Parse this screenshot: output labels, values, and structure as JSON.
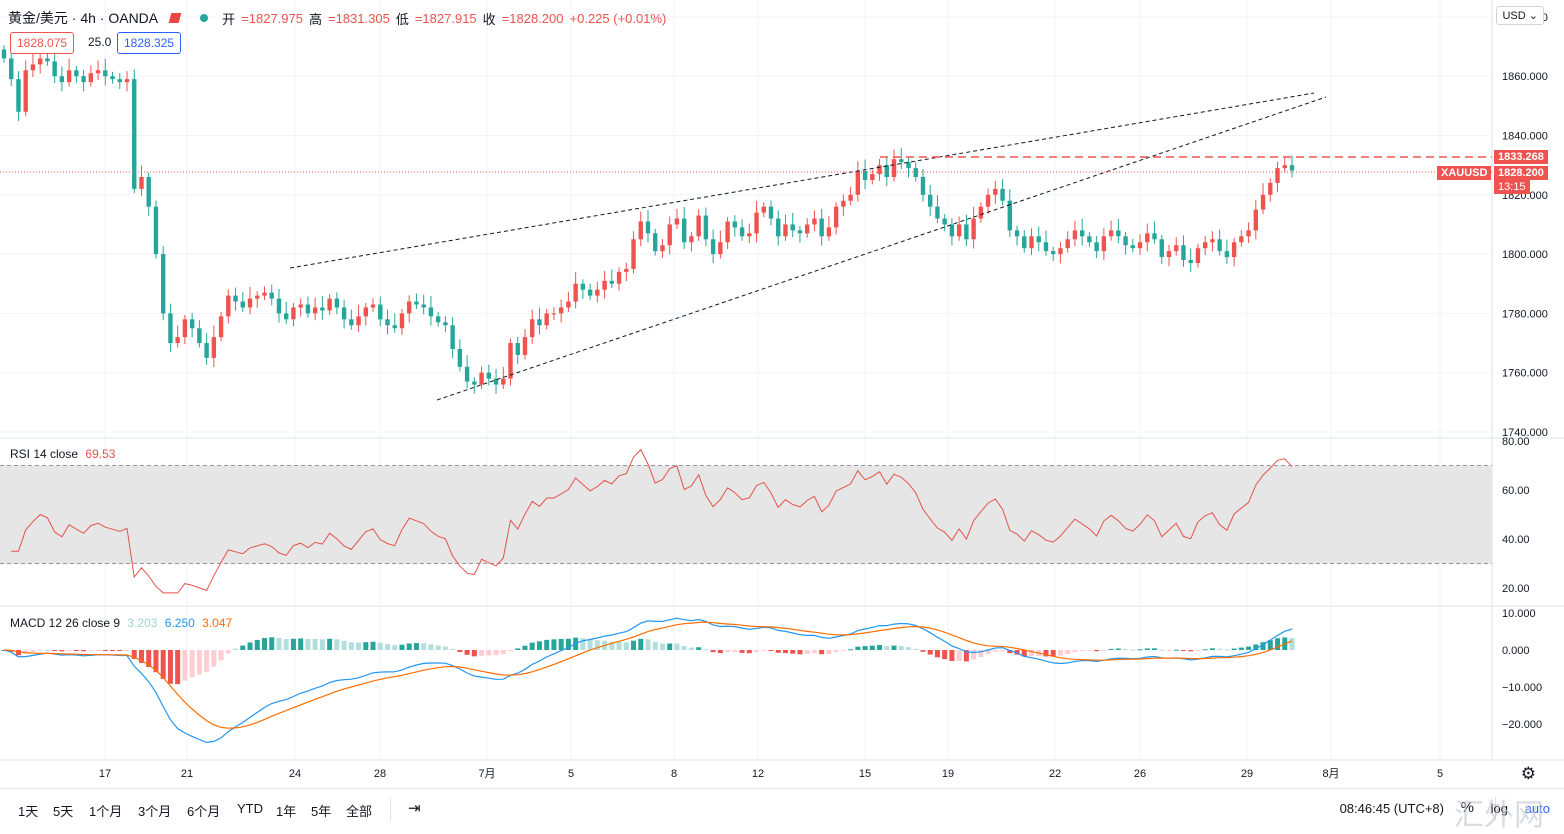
{
  "header": {
    "symbol": "黄金/美元 · 4h · OANDA",
    "open_label": "开",
    "open": "=1827.975",
    "high_label": "高",
    "high": "=1831.305",
    "low_label": "低",
    "low": "=1827.915",
    "close_label": "收",
    "close": "=1828.200",
    "change": "+0.225 (+0.01%)",
    "bid": "1828.075",
    "spread": "25.0",
    "ask": "1828.325",
    "currency": "USD"
  },
  "price_axis": {
    "ticks": [
      "1880.000",
      "1860.000",
      "1840.000",
      "1820.000",
      "1800.000",
      "1780.000",
      "1760.000",
      "1740.000"
    ],
    "alert_price": "1833.268",
    "symbol_tag": "XAUUSD",
    "last_price": "1828.200",
    "countdown": "13:15"
  },
  "rsi": {
    "label": "RSI 14 close",
    "value": "69.53",
    "ticks": [
      "80.00",
      "60.00",
      "40.00",
      "20.00"
    ]
  },
  "macd": {
    "label": "MACD 12 26 close 9",
    "hist": "3.203",
    "macd": "6.250",
    "signal": "3.047",
    "ticks": [
      "10.000",
      "0.000",
      "−10.000",
      "−20.000"
    ]
  },
  "time_axis": {
    "labels": [
      "17",
      "21",
      "24",
      "28",
      "7月",
      "5",
      "8",
      "12",
      "15",
      "19",
      "22",
      "26",
      "29",
      "8月",
      "5"
    ]
  },
  "ranges": [
    "1天",
    "5天",
    "1个月",
    "3个月",
    "6个月",
    "YTD",
    "1年",
    "5年",
    "全部"
  ],
  "footer": {
    "clock": "08:46:45 (UTC+8)",
    "percent": "%",
    "log": "log",
    "auto": "auto"
  },
  "watermark": "汇外网",
  "colors": {
    "up": "#ef5350",
    "down": "#26a69a",
    "rsi": "#e5534b",
    "macd_line": "#2196f3",
    "signal_line": "#ff6d00"
  },
  "chart_data": {
    "type": "candlestick",
    "timeframe": "4h",
    "ylim": [
      1740,
      1880
    ],
    "closes": [
      1866,
      1859,
      1848,
      1862,
      1864,
      1866,
      1865,
      1860,
      1858,
      1862,
      1860,
      1858,
      1861,
      1862,
      1860,
      1859,
      1858,
      1859,
      1822,
      1826,
      1816,
      1800,
      1780,
      1770,
      1772,
      1778,
      1775,
      1770,
      1765,
      1772,
      1779,
      1786,
      1784,
      1782,
      1785,
      1786,
      1787,
      1785,
      1780,
      1778,
      1782,
      1783,
      1780,
      1782,
      1781,
      1785,
      1782,
      1778,
      1776,
      1779,
      1782,
      1783,
      1778,
      1776,
      1775,
      1780,
      1784,
      1783,
      1782,
      1779,
      1777,
      1776,
      1768,
      1762,
      1757,
      1756,
      1760,
      1758,
      1756,
      1758,
      1770,
      1766,
      1772,
      1778,
      1776,
      1780,
      1780,
      1782,
      1784,
      1790,
      1788,
      1786,
      1788,
      1791,
      1790,
      1794,
      1795,
      1805,
      1811,
      1807,
      1801,
      1803,
      1810,
      1812,
      1804,
      1806,
      1813,
      1805,
      1800,
      1804,
      1811,
      1809,
      1806,
      1807,
      1814,
      1816,
      1812,
      1806,
      1810,
      1808,
      1807,
      1810,
      1812,
      1806,
      1809,
      1816,
      1818,
      1820,
      1828,
      1825,
      1827,
      1830,
      1826,
      1832,
      1831,
      1829,
      1826,
      1820,
      1816,
      1812,
      1810,
      1806,
      1810,
      1805,
      1812,
      1816,
      1820,
      1822,
      1818,
      1808,
      1806,
      1802,
      1806,
      1804,
      1801,
      1800,
      1802,
      1805,
      1808,
      1806,
      1804,
      1801,
      1806,
      1808,
      1806,
      1803,
      1802,
      1804,
      1807,
      1805,
      1799,
      1801,
      1803,
      1798,
      1797,
      1802,
      1804,
      1805,
      1801,
      1799,
      1804,
      1806,
      1808,
      1815,
      1820,
      1824,
      1829,
      1830,
      1828.2
    ],
    "rsi_range": [
      20,
      80
    ],
    "rsi_bands": [
      30,
      70
    ],
    "rsi_last": 69.53,
    "macd_range": [
      -25,
      10
    ],
    "macd_last": {
      "hist": 3.203,
      "macd": 6.25,
      "signal": 3.047
    }
  }
}
